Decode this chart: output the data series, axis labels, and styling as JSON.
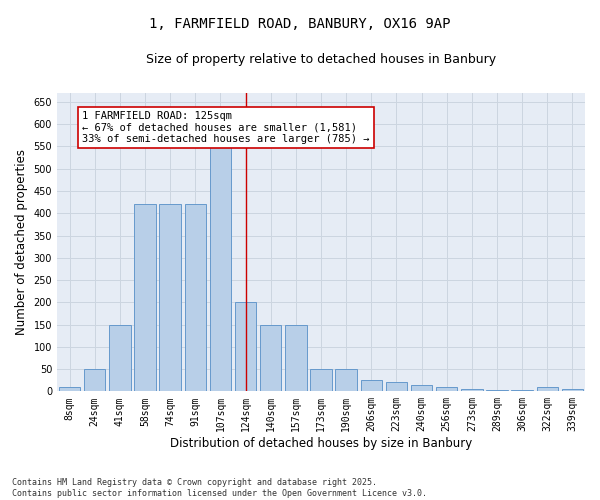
{
  "title1": "1, FARMFIELD ROAD, BANBURY, OX16 9AP",
  "title2": "Size of property relative to detached houses in Banbury",
  "xlabel": "Distribution of detached houses by size in Banbury",
  "ylabel": "Number of detached properties",
  "categories": [
    "8sqm",
    "24sqm",
    "41sqm",
    "58sqm",
    "74sqm",
    "91sqm",
    "107sqm",
    "124sqm",
    "140sqm",
    "157sqm",
    "173sqm",
    "190sqm",
    "206sqm",
    "223sqm",
    "240sqm",
    "256sqm",
    "273sqm",
    "289sqm",
    "306sqm",
    "322sqm",
    "339sqm"
  ],
  "values": [
    10,
    50,
    150,
    420,
    420,
    420,
    570,
    200,
    150,
    150,
    50,
    50,
    25,
    20,
    15,
    10,
    5,
    3,
    2,
    10,
    5
  ],
  "bar_color": "#b8cfe8",
  "bar_edge_color": "#6699cc",
  "vline_x_index": 7,
  "vline_color": "#cc0000",
  "annotation_text": "1 FARMFIELD ROAD: 125sqm\n← 67% of detached houses are smaller (1,581)\n33% of semi-detached houses are larger (785) →",
  "annotation_box_color": "#ffffff",
  "annotation_box_edge": "#cc0000",
  "grid_color": "#ccd5e0",
  "bg_color": "#e6ecf5",
  "footnote": "Contains HM Land Registry data © Crown copyright and database right 2025.\nContains public sector information licensed under the Open Government Licence v3.0.",
  "ylim": [
    0,
    670
  ],
  "yticks": [
    0,
    50,
    100,
    150,
    200,
    250,
    300,
    350,
    400,
    450,
    500,
    550,
    600,
    650
  ],
  "title_fontsize": 10,
  "subtitle_fontsize": 9,
  "tick_fontsize": 7,
  "label_fontsize": 8.5,
  "footnote_fontsize": 6,
  "ann_fontsize": 7.5
}
